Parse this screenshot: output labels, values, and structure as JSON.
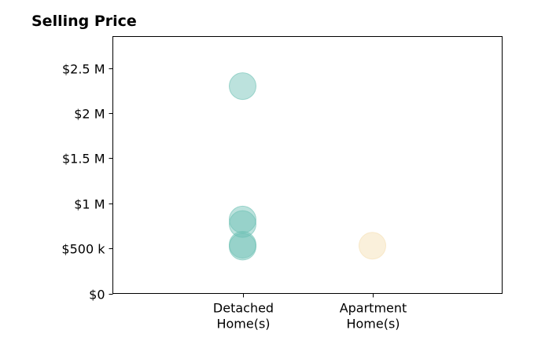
{
  "chart_data": {
    "type": "scatter",
    "title": "Selling Price",
    "xlabel": "",
    "ylabel": "",
    "categories": [
      "Detached Home(s)",
      "Apartment Home(s)"
    ],
    "x_tick_labels": [
      [
        "Detached",
        "Home(s)"
      ],
      [
        "Apartment",
        "Home(s)"
      ]
    ],
    "x_range": [
      -1,
      2
    ],
    "ylim": [
      0,
      2850000
    ],
    "y_ticks": [
      0,
      500000,
      1000000,
      1500000,
      2000000,
      2500000
    ],
    "y_tick_labels": [
      "$0",
      "$500 k",
      "$1 M",
      "$1.5 M",
      "$2 M",
      "$2.5 M"
    ],
    "grid": false,
    "series": [
      {
        "category": "Detached Home(s)",
        "color": "#6bbfb3",
        "points": [
          {
            "x": 0,
            "y": 2300000
          },
          {
            "x": 0,
            "y": 820000
          },
          {
            "x": 0,
            "y": 770000
          },
          {
            "x": 0,
            "y": 540000
          },
          {
            "x": 0,
            "y": 520000
          }
        ]
      },
      {
        "category": "Apartment Home(s)",
        "color": "#f5deb0",
        "points": [
          {
            "x": 1,
            "y": 530000
          }
        ]
      }
    ]
  }
}
